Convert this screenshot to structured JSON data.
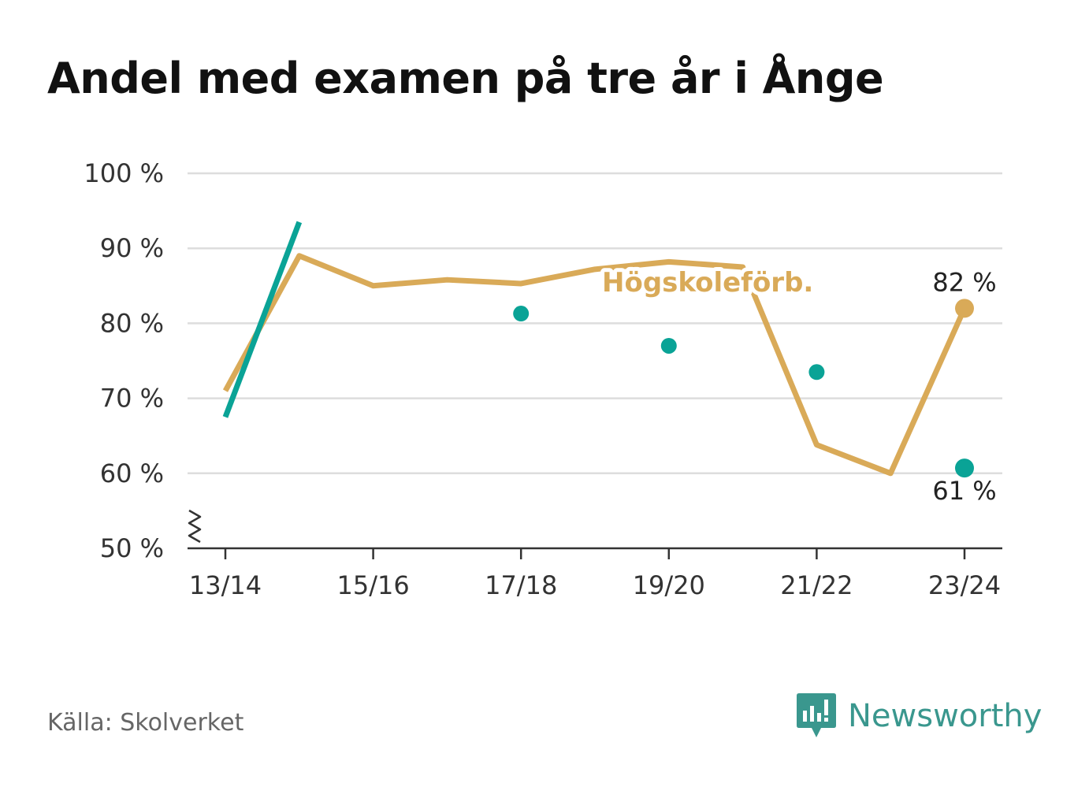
{
  "title": "Andel med examen på tre år i Ånge",
  "source": "Källa: Skolverket",
  "brand": {
    "name": "Newsworthy",
    "color": "#3a978e",
    "icon": "newsworthy-logo-icon"
  },
  "colors": {
    "gold": "#d9aa58",
    "teal": "#0aa396",
    "grid": "#dddddd",
    "axis": "#333333"
  },
  "chart_data": {
    "type": "line",
    "title": "Andel med examen på tre år i Ånge",
    "x": [
      "13/14",
      "14/15",
      "15/16",
      "16/17",
      "17/18",
      "18/19",
      "19/20",
      "20/21",
      "21/22",
      "22/23",
      "23/24"
    ],
    "xticks": [
      "13/14",
      "15/16",
      "17/18",
      "19/20",
      "21/22",
      "23/24"
    ],
    "ylim": [
      50,
      100
    ],
    "yticks": [
      "100 %",
      "90 %",
      "80 %",
      "70 %",
      "60 %",
      "50 %"
    ],
    "ytick_values": [
      100,
      90,
      80,
      70,
      60,
      50
    ],
    "grid": true,
    "axis_break": true,
    "series": [
      {
        "name": "Högskoleförb.",
        "style": "line",
        "color": "#d9aa58",
        "values": [
          71,
          89,
          85,
          85.8,
          85.3,
          87.2,
          88.2,
          87.5,
          63.8,
          60,
          82
        ],
        "end_label": "82 %"
      },
      {
        "style": "line+points",
        "color": "#0aa396",
        "values": [
          67.5,
          93.5,
          null,
          null,
          81.3,
          null,
          77,
          null,
          73.5,
          null,
          60.7
        ],
        "end_label": "61 %"
      }
    ]
  }
}
